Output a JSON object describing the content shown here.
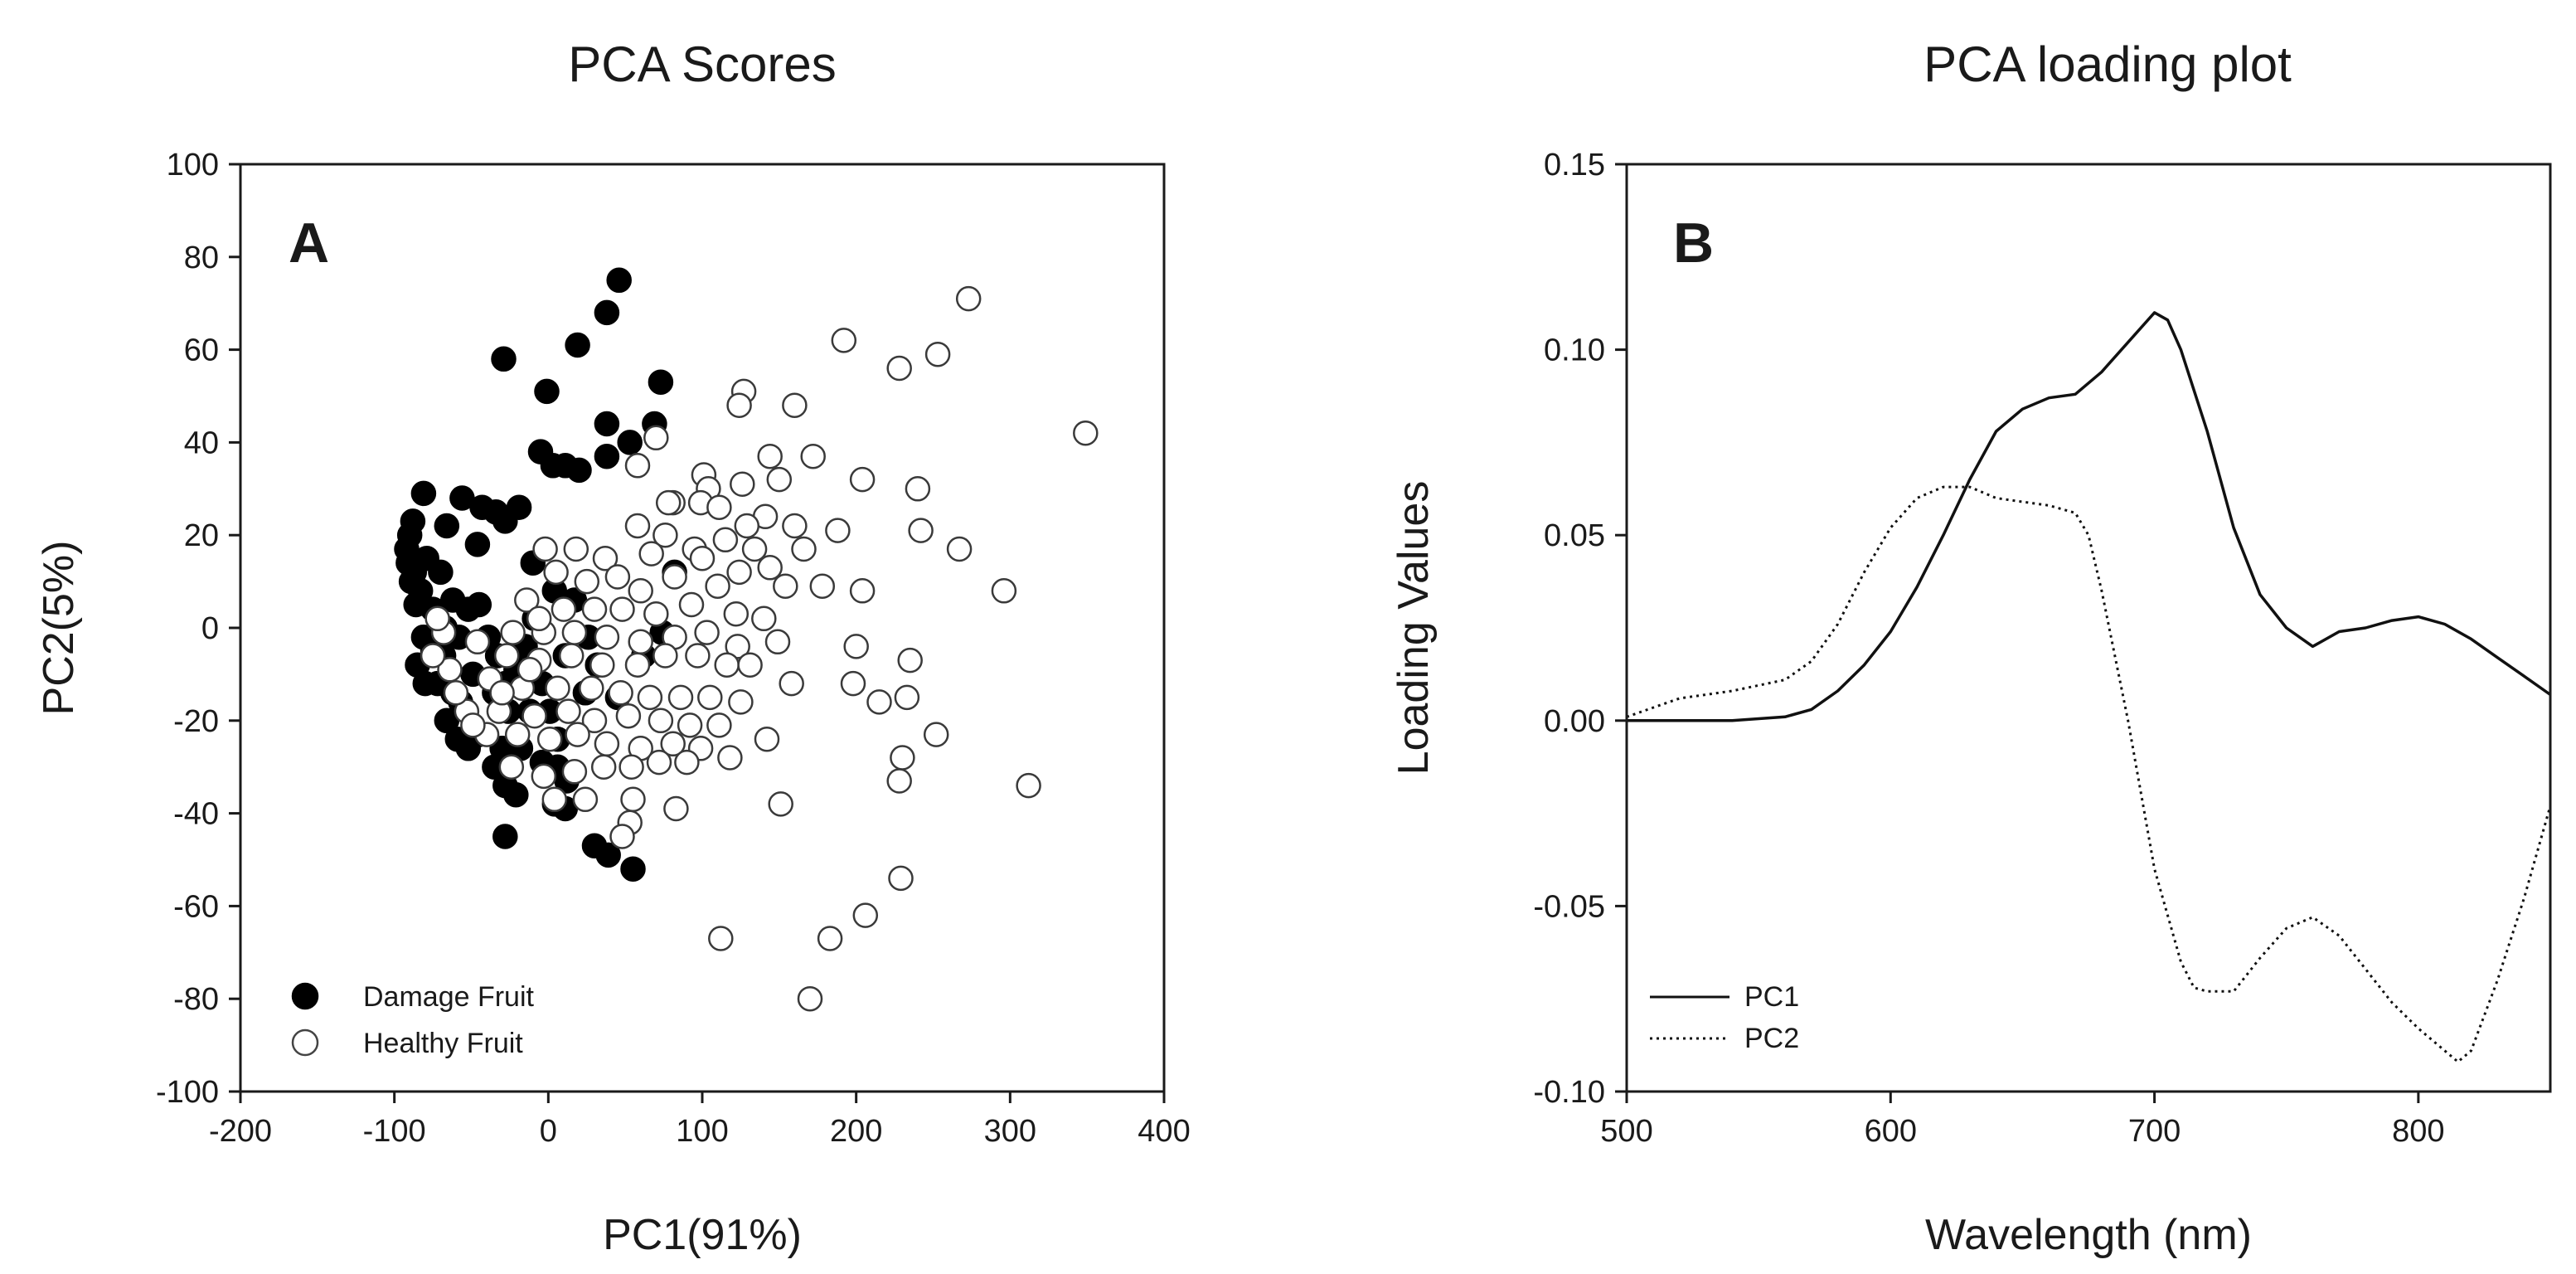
{
  "chart_data": [
    {
      "type": "scatter",
      "panel_label": "A",
      "title": "PCA Scores",
      "xlabel": "PC1(91%)",
      "ylabel": "PC2(5%)",
      "xlim": [
        -200,
        400
      ],
      "ylim": [
        -100,
        100
      ],
      "x_ticks": [
        -200,
        -100,
        0,
        100,
        200,
        300,
        400
      ],
      "y_ticks": [
        -100,
        -80,
        -60,
        -40,
        -20,
        0,
        20,
        40,
        60,
        80,
        100
      ],
      "x_tick_labels": [
        "-200",
        "-100",
        "0",
        "100",
        "200",
        "300",
        "400"
      ],
      "y_tick_labels": [
        "-100",
        "-80",
        "-60",
        "-40",
        "-20",
        "0",
        "20",
        "40",
        "60",
        "80",
        "100"
      ],
      "grid": false,
      "legend_position": "bottom-left",
      "series": [
        {
          "name": "Damage Fruit",
          "marker": "filled-circle",
          "color": "#000000",
          "points": [
            [
              46,
              75
            ],
            [
              38,
              68
            ],
            [
              19,
              61
            ],
            [
              -29,
              58
            ],
            [
              -1,
              51
            ],
            [
              73,
              53
            ],
            [
              38,
              44
            ],
            [
              69,
              44
            ],
            [
              53,
              40
            ],
            [
              -5,
              38
            ],
            [
              3,
              35
            ],
            [
              11,
              35
            ],
            [
              20,
              34
            ],
            [
              38,
              37
            ],
            [
              -19,
              26
            ],
            [
              -43,
              26
            ],
            [
              -34,
              25
            ],
            [
              -81,
              29
            ],
            [
              -56,
              28
            ],
            [
              -66,
              22
            ],
            [
              -28,
              23
            ],
            [
              -46,
              18
            ],
            [
              -88,
              23
            ],
            [
              -90,
              20
            ],
            [
              -92,
              17
            ],
            [
              -87,
              12
            ],
            [
              -83,
              8
            ],
            [
              -79,
              15
            ],
            [
              -75,
              4
            ],
            [
              -70,
              12
            ],
            [
              -62,
              6
            ],
            [
              -58,
              -2
            ],
            [
              -67,
              0
            ],
            [
              -75,
              -5
            ],
            [
              -81,
              -2
            ],
            [
              -86,
              5
            ],
            [
              -89,
              10
            ],
            [
              -91,
              14
            ],
            [
              -85,
              -8
            ],
            [
              -80,
              -12
            ],
            [
              -72,
              -12
            ],
            [
              -68,
              -6
            ],
            [
              -62,
              -14
            ],
            [
              -57,
              -16
            ],
            [
              -49,
              -10
            ],
            [
              -39,
              -2
            ],
            [
              -52,
              4
            ],
            [
              -45,
              5
            ],
            [
              -33,
              -6
            ],
            [
              -28,
              -12
            ],
            [
              -21,
              -9
            ],
            [
              -15,
              -4
            ],
            [
              -9,
              2
            ],
            [
              -4,
              -12
            ],
            [
              1,
              -18
            ],
            [
              6,
              -24
            ],
            [
              -12,
              -18
            ],
            [
              -26,
              -18
            ],
            [
              -35,
              -14
            ],
            [
              -66,
              -20
            ],
            [
              -59,
              -24
            ],
            [
              -45,
              -23
            ],
            [
              -30,
              -26
            ],
            [
              -18,
              -26
            ],
            [
              -4,
              -29
            ],
            [
              6,
              -30
            ],
            [
              12,
              -33
            ],
            [
              -35,
              -30
            ],
            [
              -28,
              -34
            ],
            [
              -21,
              -36
            ],
            [
              -28,
              -45
            ],
            [
              4,
              -38
            ],
            [
              11,
              -39
            ],
            [
              30,
              -47
            ],
            [
              39,
              -49
            ],
            [
              55,
              -52
            ],
            [
              17,
              6
            ],
            [
              26,
              -2
            ],
            [
              32,
              -8
            ],
            [
              45,
              -15
            ],
            [
              62,
              -6
            ],
            [
              74,
              -1
            ],
            [
              82,
              12
            ],
            [
              -10,
              14
            ],
            [
              4,
              8
            ],
            [
              11,
              -6
            ],
            [
              24,
              -14
            ],
            [
              -52,
              -26
            ]
          ]
        },
        {
          "name": "Healthy Fruit",
          "marker": "open-circle",
          "color": "#ffffff",
          "points": [
            [
              273,
              71
            ],
            [
              192,
              62
            ],
            [
              253,
              59
            ],
            [
              228,
              56
            ],
            [
              127,
              51
            ],
            [
              160,
              48
            ],
            [
              124,
              48
            ],
            [
              70,
              41
            ],
            [
              144,
              37
            ],
            [
              172,
              37
            ],
            [
              58,
              35
            ],
            [
              101,
              33
            ],
            [
              104,
              30
            ],
            [
              81,
              27
            ],
            [
              126,
              31
            ],
            [
              150,
              32
            ],
            [
              204,
              32
            ],
            [
              240,
              30
            ],
            [
              78,
              27
            ],
            [
              99,
              27
            ],
            [
              111,
              26
            ],
            [
              141,
              24
            ],
            [
              129,
              22
            ],
            [
              160,
              22
            ],
            [
              188,
              21
            ],
            [
              242,
              21
            ],
            [
              267,
              17
            ],
            [
              58,
              22
            ],
            [
              76,
              20
            ],
            [
              115,
              19
            ],
            [
              95,
              17
            ],
            [
              134,
              17
            ],
            [
              166,
              17
            ],
            [
              37,
              15
            ],
            [
              67,
              16
            ],
            [
              100,
              15
            ],
            [
              124,
              12
            ],
            [
              144,
              13
            ],
            [
              18,
              17
            ],
            [
              -2,
              17
            ],
            [
              5,
              12
            ],
            [
              25,
              10
            ],
            [
              45,
              11
            ],
            [
              60,
              8
            ],
            [
              82,
              11
            ],
            [
              110,
              9
            ],
            [
              154,
              9
            ],
            [
              178,
              9
            ],
            [
              204,
              8
            ],
            [
              296,
              8
            ],
            [
              -14,
              6
            ],
            [
              10,
              4
            ],
            [
              30,
              4
            ],
            [
              48,
              4
            ],
            [
              70,
              3
            ],
            [
              93,
              5
            ],
            [
              122,
              3
            ],
            [
              140,
              2
            ],
            [
              -23,
              -1
            ],
            [
              -3,
              -1
            ],
            [
              17,
              -1
            ],
            [
              38,
              -2
            ],
            [
              60,
              -3
            ],
            [
              82,
              -2
            ],
            [
              103,
              -1
            ],
            [
              123,
              -4
            ],
            [
              149,
              -3
            ],
            [
              200,
              -4
            ],
            [
              -46,
              -3
            ],
            [
              -27,
              -6
            ],
            [
              -6,
              -7
            ],
            [
              15,
              -6
            ],
            [
              35,
              -8
            ],
            [
              58,
              -8
            ],
            [
              76,
              -6
            ],
            [
              97,
              -6
            ],
            [
              116,
              -8
            ],
            [
              131,
              -8
            ],
            [
              235,
              -7
            ],
            [
              -64,
              -9
            ],
            [
              -38,
              -11
            ],
            [
              -17,
              -13
            ],
            [
              6,
              -13
            ],
            [
              28,
              -13
            ],
            [
              47,
              -14
            ],
            [
              66,
              -15
            ],
            [
              86,
              -15
            ],
            [
              105,
              -15
            ],
            [
              125,
              -16
            ],
            [
              158,
              -12
            ],
            [
              198,
              -12
            ],
            [
              -53,
              -18
            ],
            [
              -32,
              -18
            ],
            [
              -9,
              -19
            ],
            [
              13,
              -18
            ],
            [
              30,
              -20
            ],
            [
              52,
              -19
            ],
            [
              73,
              -20
            ],
            [
              92,
              -21
            ],
            [
              111,
              -21
            ],
            [
              215,
              -16
            ],
            [
              233,
              -15
            ],
            [
              -40,
              -23
            ],
            [
              -20,
              -23
            ],
            [
              1,
              -24
            ],
            [
              19,
              -23
            ],
            [
              38,
              -25
            ],
            [
              60,
              -26
            ],
            [
              81,
              -25
            ],
            [
              99,
              -26
            ],
            [
              142,
              -24
            ],
            [
              252,
              -23
            ],
            [
              -24,
              -30
            ],
            [
              -3,
              -32
            ],
            [
              17,
              -31
            ],
            [
              36,
              -30
            ],
            [
              54,
              -30
            ],
            [
              72,
              -29
            ],
            [
              90,
              -29
            ],
            [
              118,
              -28
            ],
            [
              230,
              -28
            ],
            [
              4,
              -37
            ],
            [
              24,
              -37
            ],
            [
              55,
              -37
            ],
            [
              83,
              -39
            ],
            [
              151,
              -38
            ],
            [
              228,
              -33
            ],
            [
              312,
              -34
            ],
            [
              53,
              -42
            ],
            [
              48,
              -45
            ],
            [
              229,
              -54
            ],
            [
              206,
              -62
            ],
            [
              349,
              42
            ],
            [
              112,
              -67
            ],
            [
              183,
              -67
            ],
            [
              170,
              -80
            ],
            [
              -68,
              -1
            ],
            [
              -72,
              2
            ],
            [
              -60,
              -14
            ],
            [
              -49,
              -21
            ],
            [
              -30,
              -14
            ],
            [
              -12,
              -9
            ],
            [
              -75,
              -6
            ],
            [
              -6,
              2
            ]
          ]
        }
      ]
    },
    {
      "type": "line",
      "panel_label": "B",
      "title": "PCA loading plot",
      "xlabel": "Wavelength (nm)",
      "ylabel": "Loading Values",
      "xlim": [
        500,
        850
      ],
      "ylim": [
        -0.1,
        0.15
      ],
      "x_ticks": [
        500,
        600,
        700,
        800
      ],
      "y_ticks": [
        -0.1,
        -0.05,
        0.0,
        0.05,
        0.1,
        0.15
      ],
      "x_tick_labels": [
        "500",
        "600",
        "700",
        "800"
      ],
      "y_tick_labels": [
        "-0.10",
        "-0.05",
        "0.00",
        "0.05",
        "0.10",
        "0.15"
      ],
      "grid": false,
      "legend_position": "bottom-left",
      "series": [
        {
          "name": "PC1",
          "style": "solid",
          "x": [
            500,
            520,
            540,
            560,
            570,
            580,
            590,
            600,
            610,
            620,
            630,
            640,
            650,
            660,
            670,
            680,
            690,
            700,
            705,
            710,
            720,
            730,
            740,
            750,
            760,
            770,
            780,
            790,
            800,
            810,
            820,
            830,
            840,
            850
          ],
          "y": [
            0.0,
            0.0,
            0.0,
            0.001,
            0.003,
            0.008,
            0.015,
            0.024,
            0.036,
            0.05,
            0.065,
            0.078,
            0.084,
            0.087,
            0.088,
            0.094,
            0.102,
            0.11,
            0.108,
            0.1,
            0.078,
            0.052,
            0.034,
            0.025,
            0.02,
            0.024,
            0.025,
            0.027,
            0.028,
            0.026,
            0.022,
            0.017,
            0.012,
            0.007
          ]
        },
        {
          "name": "PC2",
          "style": "dotted",
          "x": [
            500,
            520,
            540,
            560,
            570,
            580,
            590,
            600,
            610,
            620,
            630,
            640,
            650,
            660,
            670,
            675,
            680,
            690,
            700,
            710,
            715,
            720,
            730,
            740,
            750,
            760,
            770,
            780,
            790,
            800,
            810,
            815,
            820,
            830,
            840,
            850
          ],
          "y": [
            0.001,
            0.006,
            0.008,
            0.011,
            0.016,
            0.026,
            0.04,
            0.052,
            0.06,
            0.063,
            0.063,
            0.06,
            0.059,
            0.058,
            0.056,
            0.05,
            0.035,
            0.0,
            -0.04,
            -0.065,
            -0.072,
            -0.073,
            -0.073,
            -0.064,
            -0.056,
            -0.053,
            -0.058,
            -0.067,
            -0.076,
            -0.083,
            -0.089,
            -0.092,
            -0.089,
            -0.07,
            -0.048,
            -0.023
          ]
        }
      ]
    }
  ]
}
